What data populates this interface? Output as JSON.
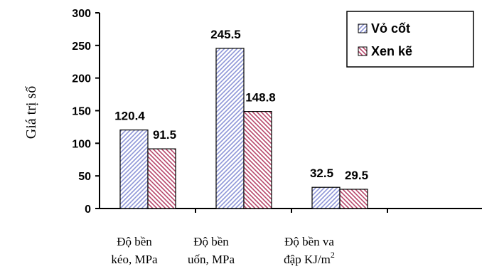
{
  "chart_data": {
    "type": "bar",
    "ylabel": "Giá trị số",
    "ylim": [
      0,
      300
    ],
    "yticks": [
      0,
      50,
      100,
      150,
      200,
      250,
      300
    ],
    "grid": false,
    "legend_position": "top-right",
    "categories": [
      "Độ bền",
      "Độ bền",
      "Độ bền va"
    ],
    "category_captions": [
      [
        "Độ bền",
        "kéo, MPa"
      ],
      [
        "Độ bền",
        "uốn, MPa"
      ],
      [
        "Độ bền va",
        "đập KJ/m",
        "2"
      ]
    ],
    "series": [
      {
        "name": "Vỏ cốt",
        "values": [
          120.4,
          245.5,
          32.5
        ],
        "color": "#8e96d8",
        "hatch": "diagonal-forward"
      },
      {
        "name": "Xen kẽ",
        "values": [
          91.5,
          148.8,
          29.5
        ],
        "color": "#b8476b",
        "hatch": "diagonal-back"
      }
    ],
    "data_labels": [
      [
        "120.4",
        "245.5",
        "32.5"
      ],
      [
        "91.5",
        "148.8",
        "29.5"
      ]
    ]
  }
}
